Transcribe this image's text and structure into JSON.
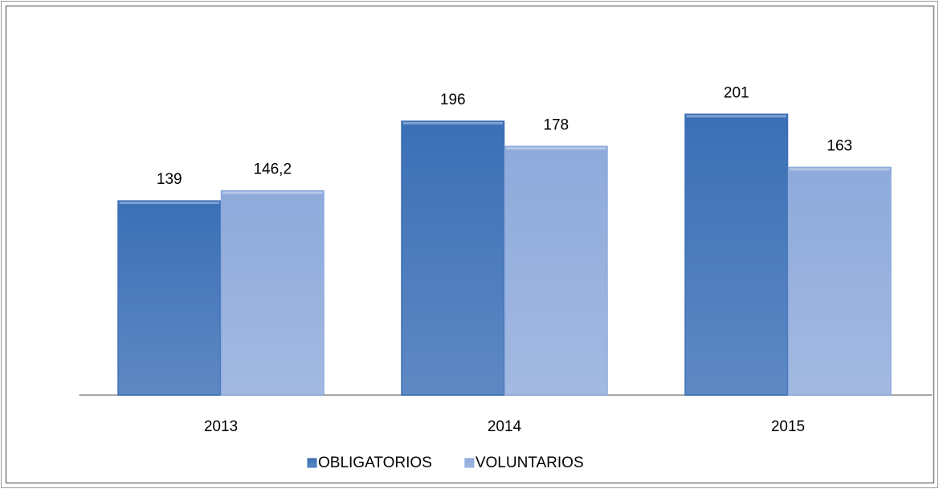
{
  "chart_data": {
    "type": "bar",
    "categories": [
      "2013",
      "2014",
      "2015"
    ],
    "series": [
      {
        "name": "OBLIGATORIOS",
        "color": "#3b6fb6",
        "values": [
          139,
          196,
          201
        ]
      },
      {
        "name": "VOLUNTARIOS",
        "color": "#8eaadb",
        "values": [
          146.2,
          178,
          163
        ],
        "value_labels": [
          "146,2",
          "178",
          "163"
        ]
      }
    ],
    "ylim": [
      0,
      250
    ]
  }
}
